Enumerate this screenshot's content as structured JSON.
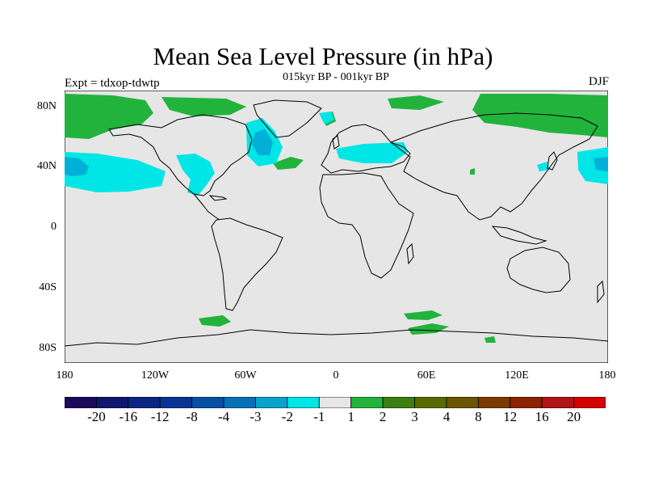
{
  "plot": {
    "title": "Mean Sea Level Pressure (in hPa)",
    "subtitle": "015kyr BP - 001kyr BP",
    "left_label": "Expt = tdxop-tdwtp",
    "right_label": "DJF"
  },
  "axes": {
    "y_ticks": [
      "80N",
      "40N",
      "0",
      "40S",
      "80S"
    ],
    "x_ticks": [
      "180",
      "120W",
      "60W",
      "0",
      "60E",
      "120E",
      "180"
    ]
  },
  "colors": {
    "background": "#e6e6e6",
    "coast": "#000000",
    "light_cyan": "#00e5e5",
    "mid_cyan": "#00b0d8",
    "green": "#22b33c"
  },
  "colorbar": {
    "colors": [
      "#1b0a5c",
      "#0f1670",
      "#0a2583",
      "#063593",
      "#0450a3",
      "#0572b8",
      "#08a3cc",
      "#00e5e5",
      "#e6e6e6",
      "#22b33c",
      "#3a7f0f",
      "#596b00",
      "#6d5400",
      "#7a3a00",
      "#8c2200",
      "#b01414",
      "#d40000"
    ],
    "labels": [
      "-20",
      "-16",
      "-12",
      "-8",
      "-4",
      "-3",
      "-2",
      "-1",
      "1",
      "2",
      "3",
      "4",
      "8",
      "12",
      "16",
      "20"
    ]
  }
}
